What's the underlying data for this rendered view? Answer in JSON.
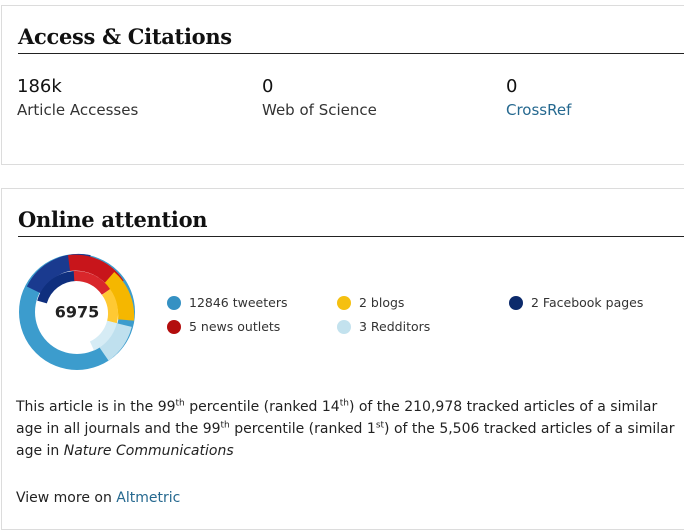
{
  "access_citations": {
    "title": "Access & Citations",
    "metrics": [
      {
        "value": "186k",
        "label": "Article Accesses",
        "link": false
      },
      {
        "value": "0",
        "label": "Web of Science",
        "link": false
      },
      {
        "value": "0",
        "label": "CrossRef",
        "link": true
      }
    ]
  },
  "online_attention": {
    "title": "Online attention",
    "score": "6975",
    "legend": [
      {
        "label": "12846 tweeters",
        "color": "#3591c3"
      },
      {
        "label": "5 news outlets",
        "color": "#b30d0d"
      },
      {
        "label": "2 blogs",
        "color": "#f5c010"
      },
      {
        "label": "3 Redditors",
        "color": "#c3e2ee"
      },
      {
        "label": "2 Facebook pages",
        "color": "#0c2a6b"
      }
    ],
    "summary": [
      {
        "text": "This article is in the 99",
        "style": "plain"
      },
      {
        "text": "th",
        "style": "sup"
      },
      {
        "text": " percentile (ranked 14",
        "style": "plain"
      },
      {
        "text": "th",
        "style": "sup"
      },
      {
        "text": ") of the 210,978 tracked articles of a similar age in all journals and the 99",
        "style": "plain"
      },
      {
        "text": "th",
        "style": "sup"
      },
      {
        "text": " percentile (ranked 1",
        "style": "plain"
      },
      {
        "text": "st",
        "style": "sup"
      },
      {
        "text": ") of the 5,506 tracked articles of a similar age in ",
        "style": "plain"
      },
      {
        "text": "Nature Communications",
        "style": "italic"
      }
    ],
    "view_more": {
      "prefix": "View more on",
      "link": "Altmetric"
    }
  }
}
